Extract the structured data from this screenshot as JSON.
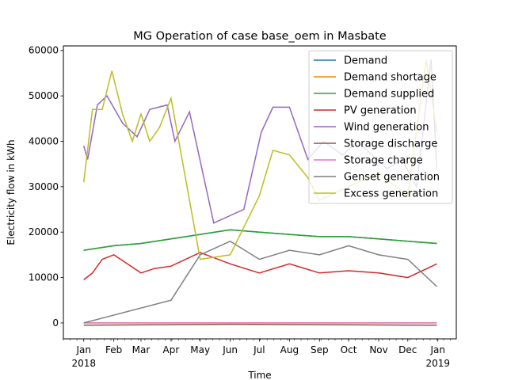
{
  "chart_data": {
    "type": "line",
    "title": "MG Operation of case base_oem in Masbate",
    "xlabel": "Time",
    "ylabel": "Electricity flow in kWh",
    "xlim": [
      "2017-12-11",
      "2019-01-20"
    ],
    "ylim": [
      -3500,
      61000
    ],
    "yticks": [
      0,
      10000,
      20000,
      30000,
      40000,
      50000,
      60000
    ],
    "ytick_labels": [
      "0",
      "10000",
      "20000",
      "30000",
      "40000",
      "50000",
      "60000"
    ],
    "xticks": [
      {
        "date": "2018-01-01",
        "label": "Jan",
        "sublabel": "2018"
      },
      {
        "date": "2018-02-01",
        "label": "Feb"
      },
      {
        "date": "2018-03-01",
        "label": "Mar"
      },
      {
        "date": "2018-04-01",
        "label": "Apr"
      },
      {
        "date": "2018-05-01",
        "label": "May"
      },
      {
        "date": "2018-06-01",
        "label": "Jun"
      },
      {
        "date": "2018-07-01",
        "label": "Jul"
      },
      {
        "date": "2018-08-01",
        "label": "Aug"
      },
      {
        "date": "2018-09-01",
        "label": "Sep"
      },
      {
        "date": "2018-10-01",
        "label": "Oct"
      },
      {
        "date": "2018-11-01",
        "label": "Nov"
      },
      {
        "date": "2018-12-01",
        "label": "Dec"
      },
      {
        "date": "2019-01-01",
        "label": "Jan",
        "sublabel": "2019"
      }
    ],
    "grid": false,
    "legend_position": "top-right",
    "series": [
      {
        "name": "Demand",
        "color": "#1f77b4",
        "x": [
          "2018-01-01",
          "2018-02-01",
          "2018-03-01",
          "2018-04-01",
          "2018-05-01",
          "2018-06-01",
          "2018-07-01",
          "2018-08-01",
          "2018-09-01",
          "2018-10-01",
          "2018-11-01",
          "2018-12-01",
          "2018-12-31"
        ],
        "y": [
          16000,
          17000,
          17500,
          18500,
          19500,
          20500,
          20000,
          19500,
          19000,
          19000,
          18500,
          18000,
          17500
        ]
      },
      {
        "name": "Demand shortage",
        "color": "#ff7f0e",
        "x": [
          "2018-01-01",
          "2018-12-31"
        ],
        "y": [
          0,
          0
        ]
      },
      {
        "name": "Demand supplied",
        "color": "#2ca02c",
        "x": [
          "2018-01-01",
          "2018-02-01",
          "2018-03-01",
          "2018-04-01",
          "2018-05-01",
          "2018-06-01",
          "2018-07-01",
          "2018-08-01",
          "2018-09-01",
          "2018-10-01",
          "2018-11-01",
          "2018-12-01",
          "2018-12-31"
        ],
        "y": [
          16000,
          17000,
          17500,
          18500,
          19500,
          20500,
          20000,
          19500,
          19000,
          19000,
          18500,
          18000,
          17500
        ]
      },
      {
        "name": "PV generation",
        "color": "#d62728",
        "x": [
          "2018-01-01",
          "2018-01-10",
          "2018-01-20",
          "2018-02-01",
          "2018-02-15",
          "2018-03-01",
          "2018-03-15",
          "2018-04-01",
          "2018-05-01",
          "2018-06-01",
          "2018-07-01",
          "2018-08-01",
          "2018-09-01",
          "2018-10-01",
          "2018-11-01",
          "2018-12-01",
          "2018-12-31"
        ],
        "y": [
          9500,
          11000,
          14000,
          15000,
          13000,
          11000,
          12000,
          12500,
          15500,
          13000,
          11000,
          13000,
          11000,
          11500,
          11000,
          10000,
          13000
        ]
      },
      {
        "name": "Wind generation",
        "color": "#9467bd",
        "x": [
          "2018-01-01",
          "2018-01-05",
          "2018-01-15",
          "2018-01-25",
          "2018-02-10",
          "2018-02-25",
          "2018-03-10",
          "2018-03-28",
          "2018-04-05",
          "2018-04-20",
          "2018-05-15",
          "2018-06-15",
          "2018-07-03",
          "2018-07-15",
          "2018-08-01",
          "2018-08-20",
          "2018-09-05",
          "2018-09-25",
          "2018-10-10",
          "2018-10-25",
          "2018-11-10",
          "2018-11-25",
          "2018-12-10",
          "2018-12-25",
          "2018-12-31"
        ],
        "y": [
          39000,
          36000,
          48000,
          50000,
          44000,
          41000,
          47000,
          48000,
          40000,
          46500,
          22000,
          25000,
          42000,
          47500,
          47500,
          36000,
          40000,
          37000,
          40000,
          37000,
          34000,
          36000,
          30000,
          58000,
          34000
        ]
      },
      {
        "name": "Storage discharge",
        "color": "#8c564b",
        "x": [
          "2018-01-01",
          "2018-06-01",
          "2018-12-31"
        ],
        "y": [
          -500,
          -300,
          -500
        ]
      },
      {
        "name": "Storage charge",
        "color": "#e377c2",
        "x": [
          "2018-01-01",
          "2018-12-31"
        ],
        "y": [
          0,
          0
        ]
      },
      {
        "name": "Genset generation",
        "color": "#7f7f7f",
        "x": [
          "2018-01-01",
          "2018-04-01",
          "2018-05-01",
          "2018-06-01",
          "2018-07-01",
          "2018-08-01",
          "2018-09-01",
          "2018-10-01",
          "2018-11-01",
          "2018-12-01",
          "2018-12-31"
        ],
        "y": [
          0,
          5000,
          15000,
          18000,
          14000,
          16000,
          15000,
          17000,
          15000,
          14000,
          8000
        ]
      },
      {
        "name": "Excess generation",
        "color": "#bcbd22",
        "x": [
          "2018-01-01",
          "2018-01-10",
          "2018-01-20",
          "2018-01-30",
          "2018-02-10",
          "2018-02-20",
          "2018-03-01",
          "2018-03-10",
          "2018-03-20",
          "2018-04-01",
          "2018-05-01",
          "2018-06-01",
          "2018-07-01",
          "2018-07-15",
          "2018-08-01",
          "2018-08-20",
          "2018-09-01",
          "2018-10-01",
          "2018-11-01",
          "2018-12-01",
          "2018-12-20",
          "2018-12-31"
        ],
        "y": [
          31000,
          47000,
          47000,
          55500,
          46000,
          40000,
          46000,
          40000,
          43000,
          49500,
          14000,
          15000,
          28000,
          38000,
          37000,
          32000,
          27000,
          30000,
          33000,
          28000,
          58000,
          42000
        ]
      }
    ]
  }
}
